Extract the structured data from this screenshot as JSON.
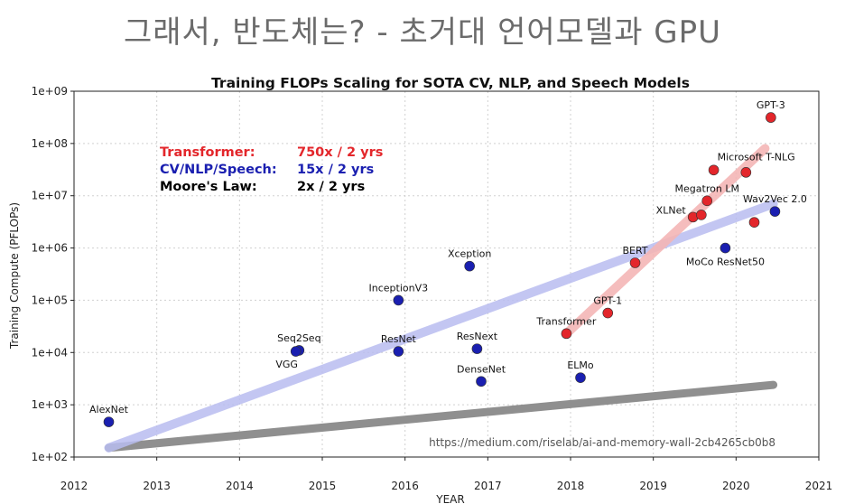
{
  "slide": {
    "title": "그래서, 반도체는? - 초거대 언어모델과 GPU"
  },
  "colors": {
    "cv": "#1a1fb0",
    "transformer": "#e3262b",
    "moore": "#000000",
    "cv_trend": "#b9bdf0",
    "transformer_trend": "#f4b6b6",
    "moore_trend": "#8f8f8f"
  },
  "chart_data": {
    "type": "scatter",
    "title": "Training FLOPs Scaling for SOTA CV, NLP, and Speech Models",
    "xlabel": "YEAR",
    "ylabel": "Training Compute (PFLOPs)",
    "xlim": [
      2012,
      2021
    ],
    "ylim": [
      100,
      1000000000
    ],
    "yscale": "log",
    "grid": true,
    "xticks": [
      "2012",
      "2013",
      "2014",
      "2015",
      "2016",
      "2017",
      "2018",
      "2019",
      "2020",
      "2021"
    ],
    "yticks": [
      "1e+02",
      "1e+03",
      "1e+04",
      "1e+05",
      "1e+06",
      "1e+07",
      "1e+08",
      "1e+09"
    ],
    "legend": [
      {
        "label": "Transformer:",
        "value": "750x / 2 yrs",
        "series": "transformer"
      },
      {
        "label": "CV/NLP/Speech:",
        "value": "15x / 2 yrs",
        "series": "cv"
      },
      {
        "label": "Moore's Law:",
        "value": "2x / 2 yrs",
        "series": "moore"
      }
    ],
    "points": [
      {
        "name": "AlexNet",
        "x": 2012.42,
        "y": 470,
        "series": "cv",
        "label_pos": "above"
      },
      {
        "name": "Seq2Seq",
        "x": 2014.72,
        "y": 11000,
        "series": "cv",
        "label_pos": "above"
      },
      {
        "name": "VGG",
        "x": 2014.68,
        "y": 10500,
        "series": "cv",
        "label_pos": "below-left"
      },
      {
        "name": "InceptionV3",
        "x": 2015.92,
        "y": 100000,
        "series": "cv",
        "label_pos": "above"
      },
      {
        "name": "ResNet",
        "x": 2015.92,
        "y": 10500,
        "series": "cv",
        "label_pos": "above"
      },
      {
        "name": "Xception",
        "x": 2016.78,
        "y": 450000,
        "series": "cv",
        "label_pos": "above"
      },
      {
        "name": "ResNext",
        "x": 2016.87,
        "y": 11800,
        "series": "cv",
        "label_pos": "above"
      },
      {
        "name": "DenseNet",
        "x": 2016.92,
        "y": 2800,
        "series": "cv",
        "label_pos": "above"
      },
      {
        "name": "ELMo",
        "x": 2018.12,
        "y": 3300,
        "series": "cv",
        "label_pos": "above"
      },
      {
        "name": "MoCo ResNet50",
        "x": 2019.87,
        "y": 1000000,
        "series": "cv",
        "label_pos": "below"
      },
      {
        "name": "Wav2Vec 2.0",
        "x": 2020.47,
        "y": 5000000,
        "series": "cv",
        "label_pos": "above"
      },
      {
        "name": "Transformer",
        "x": 2017.95,
        "y": 23000,
        "series": "transformer",
        "label_pos": "above"
      },
      {
        "name": "GPT-1",
        "x": 2018.45,
        "y": 57000,
        "series": "transformer",
        "label_pos": "above"
      },
      {
        "name": "BERT",
        "x": 2018.78,
        "y": 520000,
        "series": "transformer",
        "label_pos": "above"
      },
      {
        "name": "XLNet",
        "x": 2019.48,
        "y": 3900000,
        "series": "transformer",
        "label_pos": "left"
      },
      {
        "name": "",
        "x": 2019.58,
        "y": 4300000,
        "series": "transformer",
        "label_pos": "none"
      },
      {
        "name": "Megatron LM",
        "x": 2019.65,
        "y": 8000000,
        "series": "transformer",
        "label_pos": "above"
      },
      {
        "name": "Microsoft T-NLG",
        "x": 2019.73,
        "y": 31000000,
        "series": "transformer",
        "label_pos": "right"
      },
      {
        "name": "",
        "x": 2020.12,
        "y": 28000000,
        "series": "transformer",
        "label_pos": "none"
      },
      {
        "name": "",
        "x": 2020.22,
        "y": 3100000,
        "series": "transformer",
        "label_pos": "none"
      },
      {
        "name": "GPT-3",
        "x": 2020.42,
        "y": 314000000,
        "series": "transformer",
        "label_pos": "above"
      }
    ],
    "trend_lines": [
      {
        "series": "cv",
        "from": [
          2012.42,
          150
        ],
        "to": [
          2020.45,
          7000000
        ]
      },
      {
        "series": "transformer",
        "from": [
          2017.95,
          23000
        ],
        "to": [
          2020.35,
          80000000
        ]
      },
      {
        "series": "moore",
        "from": [
          2012.42,
          150
        ],
        "to": [
          2020.45,
          2400
        ]
      }
    ],
    "source": "https://medium.com/riselab/ai-and-memory-wall-2cb4265cb0b8"
  }
}
